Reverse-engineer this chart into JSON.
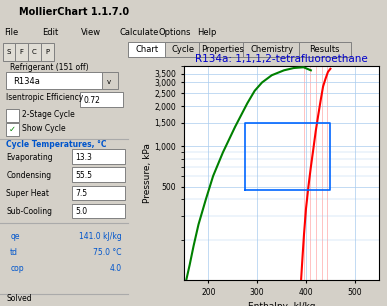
{
  "title": "R134a: 1,1,1,2-tetrafluoroethane",
  "title_color": "#0000cc",
  "xlabel": "Enthalpy, kJ/kg",
  "ylabel": "Pressure, kPa",
  "xlim": [
    150,
    550
  ],
  "ylim": [
    100,
    4000
  ],
  "xticks": [
    200,
    300,
    400,
    500
  ],
  "yticks": [
    500,
    1000,
    1500,
    2000,
    2500,
    3000,
    3500
  ],
  "ytick_labels": [
    "500",
    "1,000",
    "1,500",
    "2,000",
    "2,500",
    "3,000",
    "3,500"
  ],
  "plot_bg_color": "#ffffff",
  "grid_color": "#aaccee",
  "bg_color": "#d4d0c8",
  "tab_labels": [
    "Chart",
    "Cycle",
    "Properties",
    "Chemistry",
    "Results"
  ],
  "refrigerant_label": "Refrigerant (151 off)",
  "refrigerant_value": "R134a",
  "isentropic_label": "Isentropic Efficiency",
  "isentropic_value": "0.72",
  "two_stage_label": "2-Stage Cycle",
  "show_cycle_label": "Show Cycle",
  "cycle_temps_label": "Cycle Temperatures, °C",
  "evaporating_label": "Evaporating",
  "evaporating_value": "13.3",
  "condensing_label": "Condensing",
  "condensing_value": "55.5",
  "superheat_label": "Super Heat",
  "superheat_value": "7.5",
  "subcooling_label": "Sub-Cooling",
  "subcooling_value": "5.0",
  "qe_label": "qe",
  "qe_value": "141.0 kJ/kg",
  "td_label": "td",
  "td_value": "75.0 °C",
  "cop_label": "cop",
  "cop_value": "4.0",
  "status_label": "Solved",
  "window_title": "MollierChart 1.1.7.0",
  "green_curve_x": [
    155,
    162,
    170,
    180,
    195,
    210,
    230,
    255,
    280,
    295,
    310,
    330,
    355,
    375,
    395,
    410
  ],
  "green_curve_y": [
    100,
    130,
    180,
    260,
    400,
    600,
    900,
    1400,
    2100,
    2600,
    3000,
    3400,
    3700,
    3850,
    3900,
    3700
  ],
  "red_curve_x": [
    390,
    393,
    396,
    400,
    405,
    410,
    415,
    420,
    425,
    430,
    435,
    440,
    445,
    450
  ],
  "red_curve_y": [
    100,
    150,
    220,
    340,
    500,
    700,
    950,
    1300,
    1700,
    2200,
    2800,
    3200,
    3600,
    3800
  ],
  "cycle_rect_x": [
    275,
    275,
    415,
    450,
    450,
    415,
    275
  ],
  "cycle_rect_y": [
    475,
    1500,
    1500,
    1500,
    475,
    475,
    475
  ],
  "cycle_color": "#0066ff",
  "red_vertical_lines_x": [
    396,
    408,
    420,
    432,
    444
  ],
  "red_vertical_color": "#ffaaaa",
  "menu_items": [
    "File",
    "Edit",
    "View",
    "Calculate",
    "Options",
    "Help"
  ]
}
